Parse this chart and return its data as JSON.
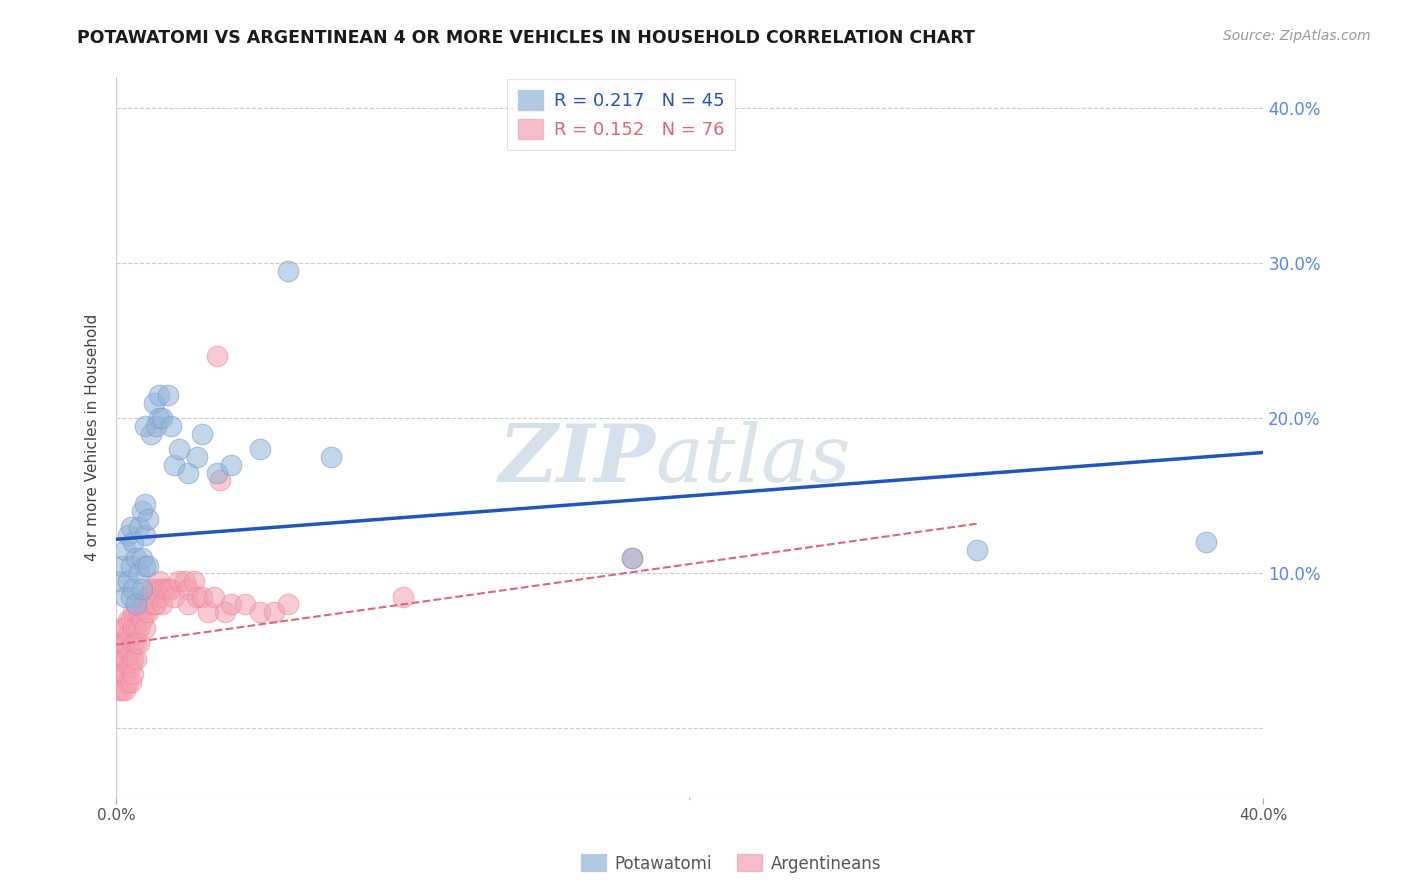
{
  "title": "POTAWATOMI VS ARGENTINEAN 4 OR MORE VEHICLES IN HOUSEHOLD CORRELATION CHART",
  "source": "Source: ZipAtlas.com",
  "ylabel": "4 or more Vehicles in Household",
  "watermark_zip": "ZIP",
  "watermark_atlas": "atlas",
  "legend_blue_r": "R = 0.217",
  "legend_blue_n": "N = 45",
  "legend_pink_r": "R = 0.152",
  "legend_pink_n": "N = 76",
  "legend_label_blue": "Potawatomi",
  "legend_label_pink": "Argentineans",
  "blue_color": "#92b4d7",
  "pink_color": "#f4a0b0",
  "blue_line_color": "#2255bb",
  "pink_line_color": "#dd6677",
  "blue_scatter_edge": "#7799cc",
  "pink_scatter_edge": "#ee8899",
  "xlim": [
    0.0,
    0.4
  ],
  "ylim": [
    -0.045,
    0.42
  ],
  "blue_line_x": [
    0.0,
    0.4
  ],
  "blue_line_y": [
    0.122,
    0.178
  ],
  "pink_line_x": [
    0.0,
    0.3
  ],
  "pink_line_y": [
    0.054,
    0.132
  ],
  "potawatomi_x": [
    0.001,
    0.002,
    0.003,
    0.003,
    0.004,
    0.004,
    0.005,
    0.005,
    0.005,
    0.006,
    0.006,
    0.007,
    0.007,
    0.008,
    0.008,
    0.009,
    0.009,
    0.009,
    0.01,
    0.01,
    0.01,
    0.01,
    0.011,
    0.011,
    0.012,
    0.013,
    0.014,
    0.015,
    0.015,
    0.016,
    0.018,
    0.019,
    0.02,
    0.022,
    0.025,
    0.028,
    0.03,
    0.035,
    0.04,
    0.05,
    0.06,
    0.075,
    0.18,
    0.3,
    0.38
  ],
  "potawatomi_y": [
    0.095,
    0.105,
    0.085,
    0.115,
    0.095,
    0.125,
    0.085,
    0.105,
    0.13,
    0.09,
    0.12,
    0.08,
    0.11,
    0.1,
    0.13,
    0.09,
    0.11,
    0.14,
    0.105,
    0.125,
    0.145,
    0.195,
    0.105,
    0.135,
    0.19,
    0.21,
    0.195,
    0.2,
    0.215,
    0.2,
    0.215,
    0.195,
    0.17,
    0.18,
    0.165,
    0.175,
    0.19,
    0.165,
    0.17,
    0.18,
    0.295,
    0.175,
    0.11,
    0.115,
    0.12
  ],
  "argentinean_x": [
    0.001,
    0.001,
    0.001,
    0.001,
    0.002,
    0.002,
    0.002,
    0.002,
    0.002,
    0.003,
    0.003,
    0.003,
    0.003,
    0.003,
    0.004,
    0.004,
    0.004,
    0.004,
    0.004,
    0.005,
    0.005,
    0.005,
    0.005,
    0.005,
    0.006,
    0.006,
    0.006,
    0.006,
    0.006,
    0.007,
    0.007,
    0.007,
    0.007,
    0.008,
    0.008,
    0.008,
    0.009,
    0.009,
    0.01,
    0.01,
    0.01,
    0.011,
    0.011,
    0.012,
    0.012,
    0.013,
    0.013,
    0.014,
    0.014,
    0.015,
    0.015,
    0.016,
    0.016,
    0.017,
    0.018,
    0.019,
    0.02,
    0.022,
    0.024,
    0.025,
    0.025,
    0.027,
    0.028,
    0.03,
    0.032,
    0.034,
    0.035,
    0.036,
    0.038,
    0.04,
    0.045,
    0.05,
    0.055,
    0.06,
    0.1,
    0.18
  ],
  "argentinean_y": [
    0.055,
    0.045,
    0.035,
    0.025,
    0.065,
    0.055,
    0.045,
    0.035,
    0.025,
    0.065,
    0.055,
    0.045,
    0.035,
    0.025,
    0.07,
    0.06,
    0.05,
    0.04,
    0.03,
    0.07,
    0.06,
    0.05,
    0.04,
    0.03,
    0.075,
    0.065,
    0.055,
    0.045,
    0.035,
    0.075,
    0.065,
    0.055,
    0.045,
    0.075,
    0.065,
    0.055,
    0.08,
    0.07,
    0.085,
    0.075,
    0.065,
    0.085,
    0.075,
    0.09,
    0.08,
    0.09,
    0.08,
    0.09,
    0.08,
    0.095,
    0.085,
    0.09,
    0.08,
    0.09,
    0.09,
    0.09,
    0.085,
    0.095,
    0.095,
    0.09,
    0.08,
    0.095,
    0.085,
    0.085,
    0.075,
    0.085,
    0.24,
    0.16,
    0.075,
    0.08,
    0.08,
    0.075,
    0.075,
    0.08,
    0.085,
    0.11
  ]
}
